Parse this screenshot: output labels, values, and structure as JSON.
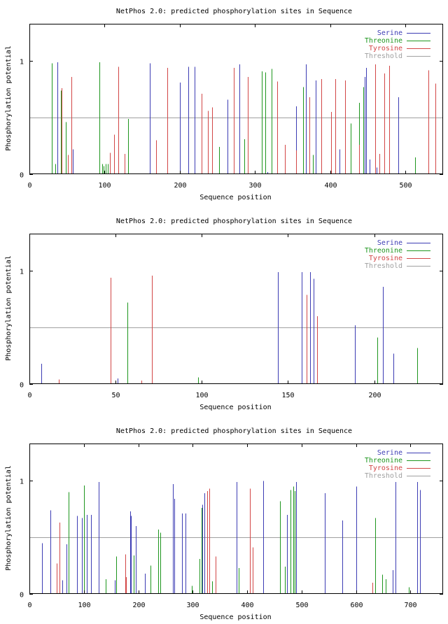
{
  "chart_data": [
    {
      "type": "bar",
      "title": "NetPhos 2.0: predicted phosphorylation sites in Sequence",
      "xlabel": "Sequence position",
      "ylabel": "Phosphorylation potential",
      "xlim": [
        0,
        550
      ],
      "ylim": [
        0,
        1.33
      ],
      "xticks": [
        0,
        100,
        200,
        300,
        400,
        500
      ],
      "yticks": [
        0,
        1
      ],
      "threshold": 0.5,
      "legend_position": "top-right",
      "legend": [
        {
          "name": "Serine",
          "color": "#3c3cb4"
        },
        {
          "name": "Threonine",
          "color": "#1e961e"
        },
        {
          "name": "Tyrosine",
          "color": "#d24646"
        },
        {
          "name": "Threshold",
          "color": "#a0a0a0"
        }
      ],
      "series": [
        {
          "name": "Serine",
          "color": "#3c3cb4",
          "x": [
            37,
            58,
            160,
            200,
            211,
            220,
            263,
            279,
            316,
            355,
            368,
            381,
            412,
            446,
            448,
            452,
            462,
            490
          ],
          "values": [
            0.99,
            0.22,
            0.98,
            0.81,
            0.95,
            0.95,
            0.66,
            0.97,
            0.02,
            0.6,
            0.97,
            0.83,
            0.22,
            0.86,
            0.94,
            0.13,
            0.06,
            0.68
          ]
        },
        {
          "name": "Threonine",
          "color": "#1e961e",
          "x": [
            30,
            34,
            42,
            48,
            93,
            97,
            99,
            101,
            104,
            131,
            252,
            286,
            309,
            314,
            322,
            364,
            377,
            427,
            438,
            444,
            513
          ],
          "values": [
            0.98,
            0.09,
            0.74,
            0.46,
            0.99,
            0.09,
            0.07,
            0.09,
            0.09,
            0.49,
            0.24,
            0.31,
            0.91,
            0.9,
            0.93,
            0.77,
            0.17,
            0.45,
            0.63,
            0.77,
            0.15
          ]
        },
        {
          "name": "Tyrosine",
          "color": "#d24646",
          "x": [
            43,
            51,
            56,
            107,
            113,
            118,
            127,
            168,
            183,
            229,
            237,
            243,
            272,
            290,
            329,
            340,
            355,
            372,
            388,
            401,
            407,
            420,
            438,
            460,
            465,
            472,
            478,
            530,
            540
          ],
          "values": [
            0.76,
            0.17,
            0.86,
            0.19,
            0.35,
            0.95,
            0.18,
            0.3,
            0.94,
            0.71,
            0.56,
            0.59,
            0.94,
            0.86,
            0.82,
            0.26,
            0.21,
            0.68,
            0.84,
            0.55,
            0.84,
            0.83,
            0.26,
            0.97,
            0.18,
            0.89,
            0.96,
            0.92,
            0.8
          ]
        }
      ]
    },
    {
      "type": "bar",
      "title": "NetPhos 2.0: predicted phosphorylation sites in Sequence",
      "xlabel": "Sequence position",
      "ylabel": "Phosphorylation potential",
      "xlim": [
        0,
        240
      ],
      "ylim": [
        0,
        1.33
      ],
      "xticks": [
        0,
        50,
        100,
        150,
        200
      ],
      "yticks": [
        0,
        1
      ],
      "threshold": 0.5,
      "legend_position": "top-right",
      "legend": [
        {
          "name": "Serine",
          "color": "#3c3cb4"
        },
        {
          "name": "Threonine",
          "color": "#1e961e"
        },
        {
          "name": "Tyrosine",
          "color": "#d24646"
        },
        {
          "name": "Threshold",
          "color": "#a0a0a0"
        }
      ],
      "series": [
        {
          "name": "Serine",
          "color": "#3c3cb4",
          "x": [
            7,
            51,
            144,
            158,
            163,
            165,
            189,
            205,
            211
          ],
          "values": [
            0.18,
            0.05,
            0.99,
            0.99,
            0.99,
            0.93,
            0.52,
            0.86,
            0.27
          ]
        },
        {
          "name": "Threonine",
          "color": "#1e961e",
          "x": [
            57,
            98,
            202,
            225
          ],
          "values": [
            0.72,
            0.06,
            0.41,
            0.32
          ]
        },
        {
          "name": "Tyrosine",
          "color": "#d24646",
          "x": [
            17,
            47,
            65,
            71,
            161,
            167
          ],
          "values": [
            0.04,
            0.94,
            0.03,
            0.96,
            0.79,
            0.6
          ]
        }
      ]
    },
    {
      "type": "bar",
      "title": "NetPhos 2.0: predicted phosphorylation sites in Sequence",
      "xlabel": "Sequence position",
      "ylabel": "Phosphorylation potential",
      "xlim": [
        0,
        760
      ],
      "ylim": [
        0,
        1.33
      ],
      "xticks": [
        0,
        100,
        200,
        300,
        400,
        500,
        600,
        700
      ],
      "yticks": [
        0,
        1
      ],
      "threshold": 0.5,
      "legend_position": "top-right",
      "legend": [
        {
          "name": "Serine",
          "color": "#3c3cb4"
        },
        {
          "name": "Threonine",
          "color": "#1e961e"
        },
        {
          "name": "Tyrosine",
          "color": "#d24646"
        },
        {
          "name": "Threshold",
          "color": "#a0a0a0"
        }
      ],
      "series": [
        {
          "name": "Serine",
          "color": "#3c3cb4",
          "x": [
            23,
            39,
            60,
            68,
            88,
            96,
            105,
            113,
            127,
            157,
            185,
            187,
            195,
            212,
            264,
            266,
            280,
            287,
            318,
            322,
            380,
            430,
            473,
            490,
            543,
            575,
            600,
            668,
            673,
            713,
            718
          ],
          "values": [
            0.45,
            0.74,
            0.12,
            0.44,
            0.69,
            0.67,
            0.7,
            0.7,
            0.99,
            0.12,
            0.73,
            0.69,
            0.6,
            0.18,
            0.97,
            0.84,
            0.71,
            0.71,
            0.79,
            0.89,
            0.99,
            1.0,
            0.7,
            0.99,
            0.89,
            0.65,
            0.95,
            0.21,
            0.99,
            0.99,
            0.92
          ]
        },
        {
          "name": "Threonine",
          "color": "#1e961e",
          "x": [
            72,
            100,
            140,
            160,
            192,
            222,
            237,
            240,
            298,
            313,
            316,
            335,
            385,
            460,
            470,
            480,
            485,
            488,
            635,
            648,
            655,
            697
          ],
          "values": [
            0.9,
            0.96,
            0.13,
            0.33,
            0.34,
            0.25,
            0.57,
            0.54,
            0.07,
            0.31,
            0.76,
            0.11,
            0.23,
            0.82,
            0.24,
            0.92,
            0.95,
            0.91,
            0.67,
            0.17,
            0.13,
            0.06
          ]
        },
        {
          "name": "Tyrosine",
          "color": "#d24646",
          "x": [
            50,
            55,
            176,
            178,
            326,
            330,
            342,
            405,
            410,
            630
          ],
          "values": [
            0.27,
            0.63,
            0.35,
            0.15,
            0.91,
            0.93,
            0.33,
            0.93,
            0.41,
            0.1
          ]
        }
      ]
    }
  ]
}
